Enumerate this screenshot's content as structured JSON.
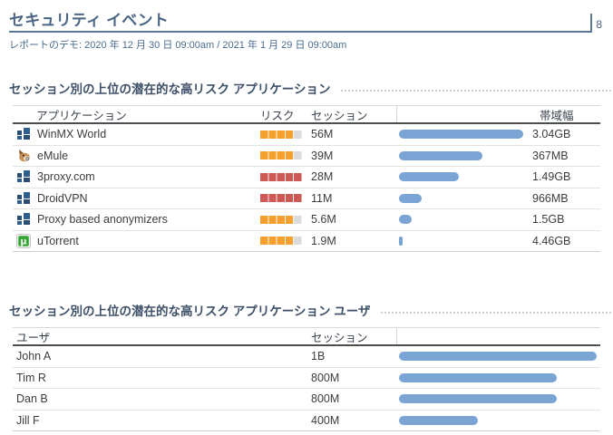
{
  "page": {
    "title": "セキュリティ イベント",
    "page_number": "8",
    "report_info": "レポートのデモ: 2020 年 12 月 30 日 09:00am / 2021 年 1 月 29 日 09:00am"
  },
  "colors": {
    "heading_blue": "#4a6584",
    "rule_blue": "#5a7896",
    "bar_blue": "#7aa4d4",
    "risk_high_orange": "#f5a02e",
    "risk_critical_red": "#cd5a57",
    "risk_track_gray": "#dcdcdc"
  },
  "apps_section": {
    "title": "セッション別の上位の潜在的な高リスク アプリケーション",
    "columns": {
      "application": "アプリケーション",
      "risk": "リスク",
      "sessions": "セッション",
      "bandwidth": "帯域幅"
    },
    "rows": [
      {
        "app": "WinMX World",
        "icon": "app-tiles-icon",
        "risk_pct": 80,
        "risk_color": "#f5a02e",
        "sessions": "56M",
        "session_bar_pct": 100,
        "bandwidth": "3.04GB"
      },
      {
        "app": "eMule",
        "icon": "emule-donkey-icon",
        "risk_pct": 80,
        "risk_color": "#f5a02e",
        "sessions": "39M",
        "session_bar_pct": 67,
        "bandwidth": "367MB"
      },
      {
        "app": "3proxy.com",
        "icon": "app-tiles-icon",
        "risk_pct": 100,
        "risk_color": "#cd5a57",
        "sessions": "28M",
        "session_bar_pct": 48,
        "bandwidth": "1.49GB"
      },
      {
        "app": "DroidVPN",
        "icon": "app-tiles-icon",
        "risk_pct": 100,
        "risk_color": "#cd5a57",
        "sessions": "11M",
        "session_bar_pct": 18,
        "bandwidth": "966MB"
      },
      {
        "app": "Proxy based anonymizers",
        "icon": "app-tiles-icon",
        "risk_pct": 80,
        "risk_color": "#f5a02e",
        "sessions": "5.6M",
        "session_bar_pct": 10,
        "bandwidth": "1.5GB"
      },
      {
        "app": "uTorrent",
        "icon": "utorrent-icon",
        "risk_pct": 80,
        "risk_color": "#f5a02e",
        "sessions": "1.9M",
        "session_bar_pct": 3,
        "bandwidth": "4.46GB"
      }
    ]
  },
  "users_section": {
    "title": "セッション別の上位の潜在的な高リスク アプリケーション ユーザ",
    "columns": {
      "user": "ユーザ",
      "sessions": "セッション"
    },
    "rows": [
      {
        "user": "John A",
        "sessions": "1B",
        "session_bar_pct": 100
      },
      {
        "user": "Tim R",
        "sessions": "800M",
        "session_bar_pct": 80
      },
      {
        "user": "Dan B",
        "sessions": "800M",
        "session_bar_pct": 80
      },
      {
        "user": "Jill F",
        "sessions": "400M",
        "session_bar_pct": 40
      }
    ]
  }
}
